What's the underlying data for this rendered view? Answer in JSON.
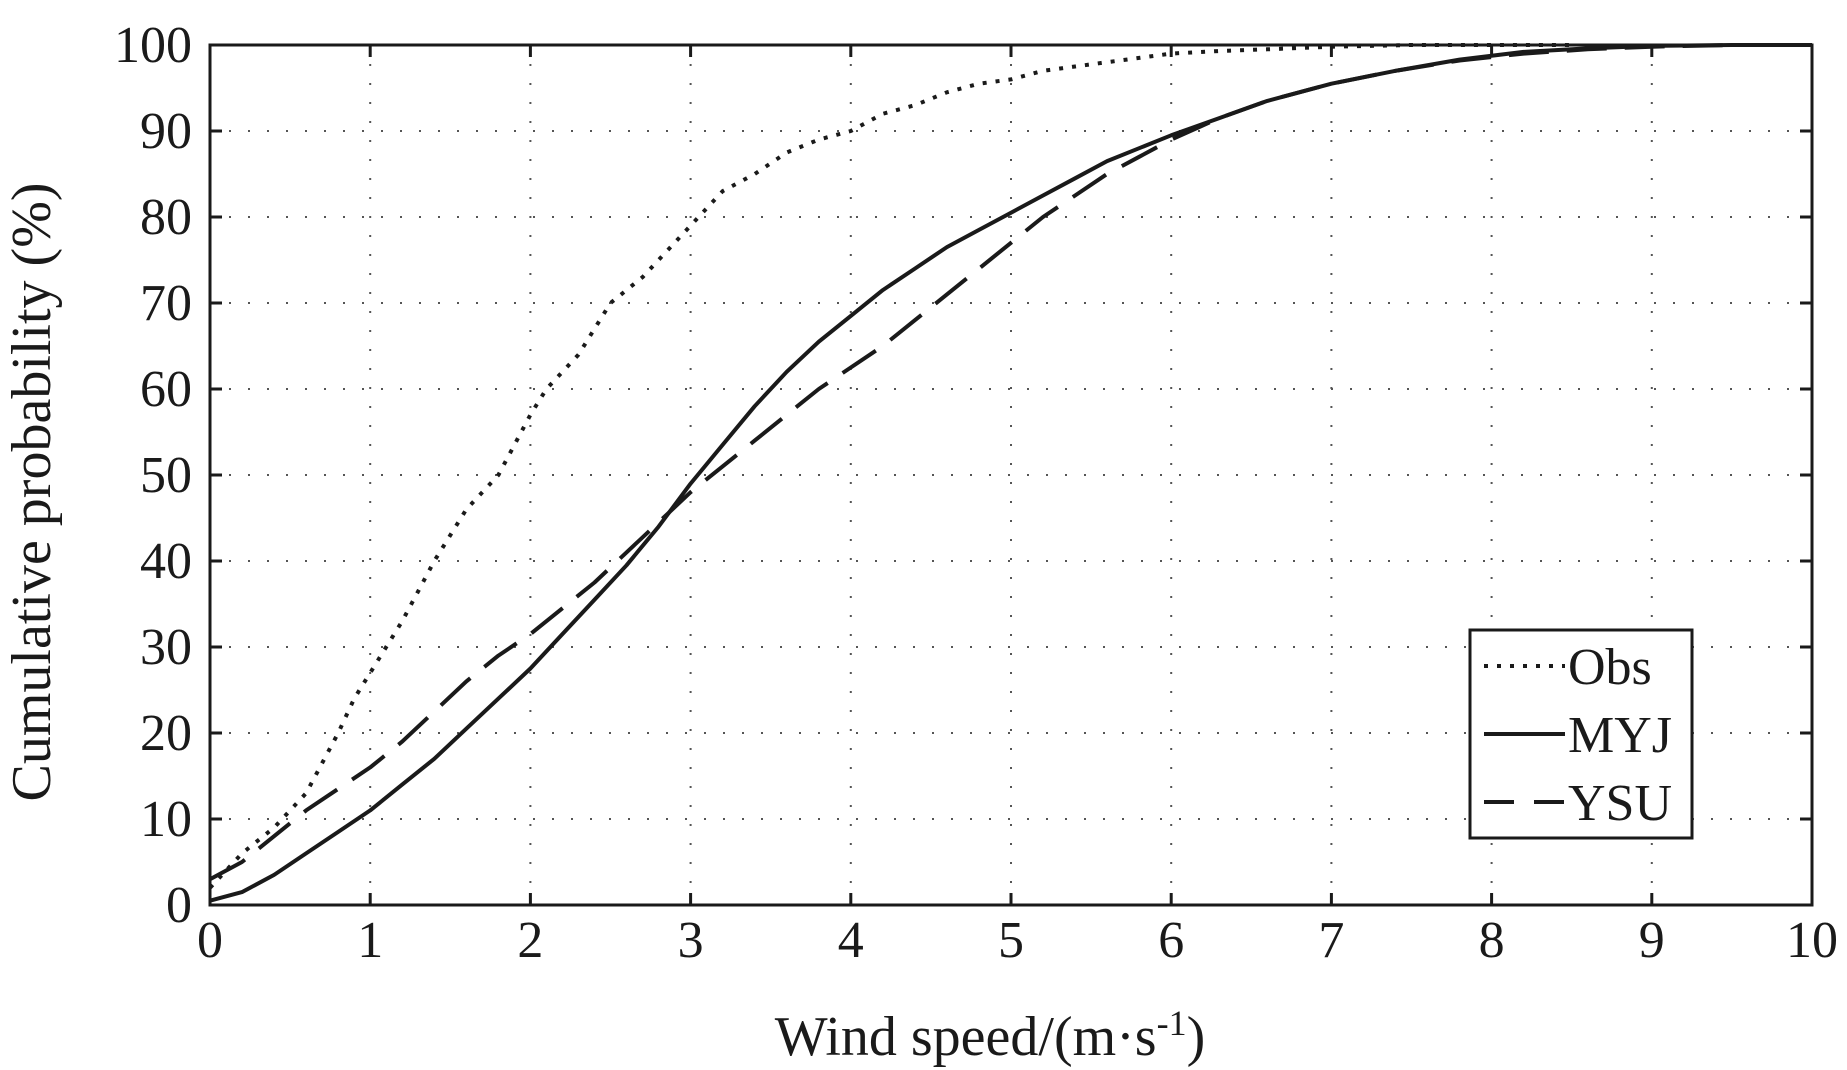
{
  "chart_data": {
    "type": "line",
    "title": "",
    "xlabel": "Wind speed/(m·s",
    "xlabel_sup": "-1",
    "xlabel_close": ")",
    "ylabel": "Cumulative probability (%)",
    "xlim": [
      0,
      10
    ],
    "ylim": [
      0,
      100
    ],
    "xticks": [
      "0",
      "1",
      "2",
      "3",
      "4",
      "5",
      "6",
      "7",
      "8",
      "9",
      "10"
    ],
    "yticks": [
      "0",
      "10",
      "20",
      "30",
      "40",
      "50",
      "60",
      "70",
      "80",
      "90",
      "100"
    ],
    "grid": true,
    "legend_position": "bottom-right",
    "series": [
      {
        "name": "Obs",
        "style": "dotted",
        "x": [
          0,
          0.2,
          0.4,
          0.6,
          0.8,
          0.9,
          1.0,
          1.2,
          1.4,
          1.6,
          1.8,
          2.0,
          2.1,
          2.3,
          2.5,
          2.7,
          2.9,
          3.0,
          3.2,
          3.4,
          3.6,
          3.8,
          4.0,
          4.2,
          4.4,
          4.6,
          4.8,
          5.0,
          5.2,
          5.4,
          5.6,
          5.8,
          6.0,
          6.3,
          6.6,
          7.0,
          7.5,
          8.0,
          8.3,
          8.5
        ],
        "y": [
          2,
          6,
          9,
          13,
          20,
          24,
          27,
          33,
          40,
          46,
          50,
          57,
          60,
          64,
          70,
          73,
          77,
          79,
          83,
          85,
          87.5,
          89,
          90,
          92,
          93,
          94.5,
          95.5,
          96,
          97,
          97.5,
          98,
          98.5,
          99,
          99.3,
          99.5,
          99.8,
          100,
          100,
          100,
          100
        ]
      },
      {
        "name": "MYJ",
        "style": "solid",
        "x": [
          0,
          0.2,
          0.4,
          0.6,
          0.8,
          1.0,
          1.2,
          1.4,
          1.6,
          1.8,
          2.0,
          2.2,
          2.4,
          2.6,
          2.8,
          3.0,
          3.2,
          3.4,
          3.6,
          3.8,
          4.0,
          4.2,
          4.4,
          4.6,
          4.8,
          5.0,
          5.2,
          5.4,
          5.6,
          5.8,
          6.0,
          6.3,
          6.6,
          7.0,
          7.4,
          7.8,
          8.2,
          8.6,
          9.0,
          9.5,
          10.0
        ],
        "y": [
          0.5,
          1.5,
          3.5,
          6,
          8.5,
          11,
          14,
          17,
          20.5,
          24,
          27.5,
          31.5,
          35.5,
          39.5,
          44,
          49,
          53.5,
          58,
          62,
          65.5,
          68.5,
          71.5,
          74,
          76.5,
          78.5,
          80.5,
          82.5,
          84.5,
          86.5,
          88,
          89.5,
          91.5,
          93.5,
          95.5,
          97,
          98.3,
          99.2,
          99.6,
          99.9,
          100,
          100
        ]
      },
      {
        "name": "YSU",
        "style": "dashed",
        "x": [
          0,
          0.2,
          0.4,
          0.6,
          0.8,
          1.0,
          1.2,
          1.4,
          1.6,
          1.8,
          2.0,
          2.2,
          2.4,
          2.6,
          2.8,
          3.0,
          3.2,
          3.4,
          3.6,
          3.8,
          4.0,
          4.2,
          4.4,
          4.6,
          4.8,
          5.0,
          5.2,
          5.4,
          5.6,
          5.8,
          6.0,
          6.3,
          6.6,
          7.0,
          7.4,
          7.8,
          8.2,
          8.6,
          9.0,
          9.5,
          10.0
        ],
        "y": [
          3,
          5,
          8,
          11,
          13.5,
          16,
          19,
          22.5,
          26,
          29,
          31.5,
          34.5,
          37.5,
          41,
          44.5,
          48,
          51,
          54,
          57,
          60,
          62.5,
          65,
          68,
          71,
          74,
          77,
          80,
          82.5,
          85,
          87,
          89,
          91.5,
          93.5,
          95.5,
          97,
          98.2,
          99,
          99.5,
          99.8,
          100,
          100
        ]
      }
    ]
  }
}
